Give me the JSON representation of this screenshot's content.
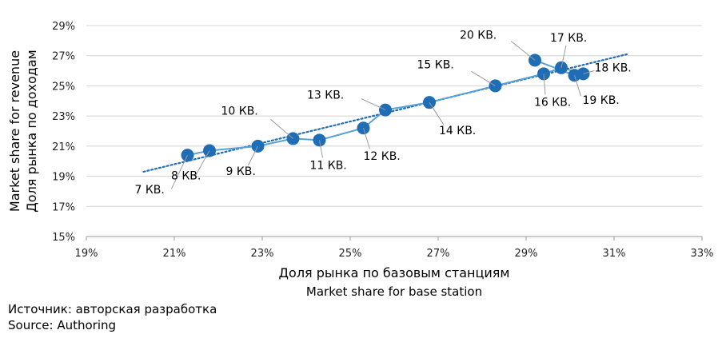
{
  "chart_data": {
    "type": "scatter",
    "x_axis": {
      "title": "Доля рынка по базовым станциям",
      "subtitle": "Market share for base station",
      "range": [
        19,
        33
      ],
      "ticks": [
        "19%",
        "21%",
        "23%",
        "25%",
        "27%",
        "29%",
        "31%",
        "33%"
      ]
    },
    "y_axis": {
      "title_line1": "Market share for revenue",
      "title_line2": "Доля рынка по доходам",
      "range": [
        15,
        29
      ],
      "ticks": [
        "15%",
        "17%",
        "19%",
        "21%",
        "23%",
        "25%",
        "27%",
        "29%"
      ]
    },
    "grid": "horizontal",
    "colors": {
      "marker": "#1f6db5",
      "line": "#5aa1d4",
      "trend": "#1f6db5"
    },
    "trendline": {
      "type": "linear",
      "style": "dotted",
      "x": [
        20.3,
        31.3
      ],
      "y": [
        19.3,
        27.1
      ]
    },
    "points": [
      {
        "label": "7 КВ.",
        "x": 21.3,
        "y": 20.4
      },
      {
        "label": "8 КВ.",
        "x": 21.8,
        "y": 20.7
      },
      {
        "label": "9 КВ.",
        "x": 22.9,
        "y": 21.0
      },
      {
        "label": "10 КВ.",
        "x": 23.7,
        "y": 21.5
      },
      {
        "label": "11 КВ.",
        "x": 24.3,
        "y": 21.4
      },
      {
        "label": "12 КВ.",
        "x": 25.3,
        "y": 22.2
      },
      {
        "label": "13 КВ.",
        "x": 25.8,
        "y": 23.4
      },
      {
        "label": "14 КВ.",
        "x": 26.8,
        "y": 23.9
      },
      {
        "label": "15 КВ.",
        "x": 28.3,
        "y": 25.0
      },
      {
        "label": "16 КВ.",
        "x": 29.4,
        "y": 25.8
      },
      {
        "label": "17 КВ.",
        "x": 29.8,
        "y": 26.2
      },
      {
        "label": "18 КВ.",
        "x": 30.3,
        "y": 25.8
      },
      {
        "label": "19 КВ.",
        "x": 30.1,
        "y": 25.7
      },
      {
        "label": "20 КВ.",
        "x": 29.2,
        "y": 26.7
      }
    ]
  },
  "source": {
    "line1": "Источник: авторская разработка",
    "line2": "Source: Authoring"
  }
}
